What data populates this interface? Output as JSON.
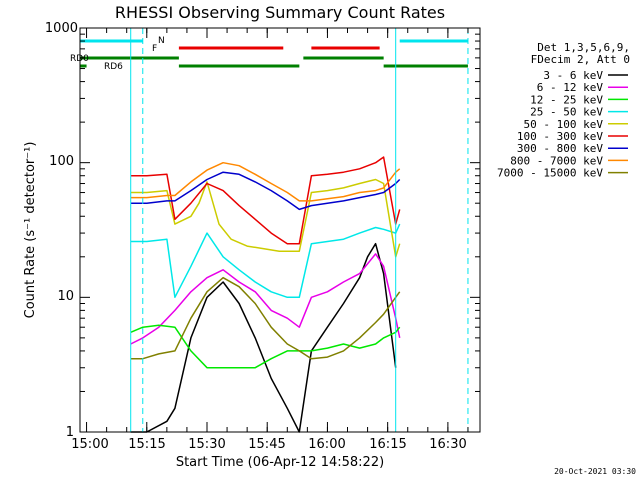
{
  "colors": {
    "background": "#ffffff",
    "axes": "#000000",
    "cyan": "#00e5ee",
    "red": "#e80000",
    "green": "#008000"
  },
  "chart_data": {
    "type": "line",
    "title": "RHESSI Observing Summary Count Rates",
    "xlabel": "Start Time (06-Apr-12 14:58:22)",
    "ylabel": "Count Rate (s⁻¹ detector⁻¹)",
    "y_scale": "log",
    "ylim": [
      1,
      1000
    ],
    "xlim": [
      "14:58:22",
      "16:38:00"
    ],
    "x_ticks": [
      "15:00",
      "15:15",
      "15:30",
      "15:45",
      "16:00",
      "16:15",
      "16:30"
    ],
    "y_ticks": [
      "1",
      "10",
      "100",
      "1000"
    ],
    "legend_header": [
      "Det 1,3,5,6,9,",
      "FDecim 2, Att 0"
    ],
    "footer_stamp": "20-Oct-2021 03:30",
    "flag_labels": {
      "N": "N",
      "F": "F",
      "RD0": "RD0",
      "RD6": "RD6"
    },
    "flags": {
      "N_cyan": [
        [
          "14:58:22",
          "15:14:00"
        ],
        [
          "16:18:00",
          "16:35:00"
        ]
      ],
      "F_red": [
        [
          "15:23:00",
          "15:49:00"
        ],
        [
          "15:56:00",
          "16:13:00"
        ]
      ],
      "RD0_green": [
        [
          "14:58:22",
          "15:23:00"
        ],
        [
          "15:54:00",
          "16:14:00"
        ]
      ],
      "RD6_green": [
        [
          "14:58:22",
          "15:00:00"
        ],
        [
          "15:23:00",
          "15:53:00"
        ],
        [
          "16:14:00",
          "16:35:00"
        ]
      ]
    },
    "vlines_solid": [
      "15:11:00",
      "16:17:00"
    ],
    "vlines_dashed": [
      "15:14:00",
      "16:35:00"
    ],
    "series": [
      {
        "name": "3 - 6 keV",
        "color": "#000000",
        "x": [
          "15:11:00",
          "15:15:00",
          "15:20:00",
          "15:22:00",
          "15:26:00",
          "15:30:00",
          "15:34:00",
          "15:38:00",
          "15:42:00",
          "15:46:00",
          "15:50:00",
          "15:53:00",
          "15:56:00",
          "16:00:00",
          "16:04:00",
          "16:08:00",
          "16:10:00",
          "16:12:00",
          "16:14:00",
          "16:17:00"
        ],
        "y": [
          1,
          1,
          1.2,
          1.5,
          5,
          10,
          13,
          9,
          5,
          2.5,
          1.5,
          1,
          4,
          6,
          9,
          14,
          20,
          25,
          15,
          3
        ]
      },
      {
        "name": "6 - 12 keV",
        "color": "#e800e8",
        "x": [
          "15:11:00",
          "15:14:00",
          "15:18:00",
          "15:22:00",
          "15:26:00",
          "15:30:00",
          "15:34:00",
          "15:38:00",
          "15:42:00",
          "15:46:00",
          "15:50:00",
          "15:53:00",
          "15:56:00",
          "16:00:00",
          "16:04:00",
          "16:08:00",
          "16:12:00",
          "16:14:00",
          "16:17:00",
          "16:18:00"
        ],
        "y": [
          4.5,
          5,
          6,
          8,
          11,
          14,
          16,
          13,
          11,
          8,
          7,
          6,
          10,
          11,
          13,
          15,
          21,
          17,
          7,
          5
        ]
      },
      {
        "name": "12 - 25 keV",
        "color": "#00e800",
        "x": [
          "15:11:00",
          "15:14:00",
          "15:18:00",
          "15:22:00",
          "15:26:00",
          "15:30:00",
          "15:34:00",
          "15:38:00",
          "15:42:00",
          "15:46:00",
          "15:50:00",
          "15:53:00",
          "15:56:00",
          "16:00:00",
          "16:04:00",
          "16:08:00",
          "16:12:00",
          "16:14:00",
          "16:17:00",
          "16:18:00"
        ],
        "y": [
          5.5,
          6,
          6.2,
          6,
          4,
          3,
          3,
          3,
          3,
          3.5,
          4,
          4,
          4,
          4.2,
          4.5,
          4.2,
          4.5,
          5,
          5.5,
          6
        ]
      },
      {
        "name": "25 - 50 keV",
        "color": "#00e8e8",
        "x": [
          "15:11:00",
          "15:15:00",
          "15:20:00",
          "15:22:00",
          "15:26:00",
          "15:30:00",
          "15:34:00",
          "15:38:00",
          "15:42:00",
          "15:46:00",
          "15:50:00",
          "15:53:00",
          "15:56:00",
          "16:00:00",
          "16:04:00",
          "16:08:00",
          "16:12:00",
          "16:14:00",
          "16:17:00",
          "16:18:00"
        ],
        "y": [
          26,
          26,
          27,
          10,
          17,
          30,
          20,
          16,
          13,
          11,
          10,
          10,
          25,
          26,
          27,
          30,
          33,
          32,
          30,
          35
        ]
      },
      {
        "name": "50 - 100 keV",
        "color": "#cccc00",
        "x": [
          "15:11:00",
          "15:15:00",
          "15:20:00",
          "15:22:00",
          "15:26:00",
          "15:28:00",
          "15:30:00",
          "15:33:00",
          "15:36:00",
          "15:40:00",
          "15:44:00",
          "15:48:00",
          "15:53:00",
          "15:56:00",
          "16:00:00",
          "16:04:00",
          "16:08:00",
          "16:12:00",
          "16:14:00",
          "16:17:00",
          "16:18:00"
        ],
        "y": [
          60,
          60,
          62,
          35,
          40,
          50,
          72,
          35,
          27,
          24,
          23,
          22,
          22,
          60,
          62,
          65,
          70,
          75,
          70,
          20,
          25
        ]
      },
      {
        "name": "100 - 300 keV",
        "color": "#e80000",
        "x": [
          "15:11:00",
          "15:15:00",
          "15:20:00",
          "15:22:00",
          "15:26:00",
          "15:30:00",
          "15:34:00",
          "15:38:00",
          "15:42:00",
          "15:46:00",
          "15:50:00",
          "15:53:00",
          "15:56:00",
          "16:00:00",
          "16:04:00",
          "16:08:00",
          "16:12:00",
          "16:14:00",
          "16:17:00",
          "16:18:00"
        ],
        "y": [
          80,
          80,
          82,
          38,
          50,
          70,
          62,
          48,
          38,
          30,
          25,
          25,
          80,
          82,
          85,
          90,
          100,
          110,
          35,
          45
        ]
      },
      {
        "name": "300 - 800 keV",
        "color": "#0000cc",
        "x": [
          "15:11:00",
          "15:15:00",
          "15:20:00",
          "15:22:00",
          "15:26:00",
          "15:30:00",
          "15:34:00",
          "15:38:00",
          "15:42:00",
          "15:46:00",
          "15:50:00",
          "15:53:00",
          "15:56:00",
          "16:00:00",
          "16:04:00",
          "16:08:00",
          "16:12:00",
          "16:14:00",
          "16:17:00",
          "16:18:00"
        ],
        "y": [
          50,
          50,
          52,
          52,
          62,
          75,
          85,
          82,
          72,
          62,
          52,
          45,
          48,
          50,
          52,
          55,
          58,
          60,
          70,
          75
        ]
      },
      {
        "name": "800 - 7000 keV",
        "color": "#ff8800",
        "x": [
          "15:11:00",
          "15:15:00",
          "15:20:00",
          "15:22:00",
          "15:26:00",
          "15:30:00",
          "15:34:00",
          "15:38:00",
          "15:42:00",
          "15:46:00",
          "15:50:00",
          "15:53:00",
          "15:56:00",
          "16:00:00",
          "16:04:00",
          "16:08:00",
          "16:12:00",
          "16:14:00",
          "16:17:00",
          "16:18:00"
        ],
        "y": [
          55,
          55,
          57,
          57,
          72,
          88,
          100,
          95,
          82,
          70,
          60,
          52,
          52,
          54,
          56,
          60,
          62,
          65,
          85,
          90
        ]
      },
      {
        "name": "7000 - 15000 keV",
        "color": "#808000",
        "x": [
          "15:11:00",
          "15:14:00",
          "15:18:00",
          "15:22:00",
          "15:26:00",
          "15:30:00",
          "15:34:00",
          "15:38:00",
          "15:42:00",
          "15:46:00",
          "15:50:00",
          "15:53:00",
          "15:56:00",
          "16:00:00",
          "16:04:00",
          "16:08:00",
          "16:12:00",
          "16:14:00",
          "16:17:00",
          "16:18:00"
        ],
        "y": [
          3.5,
          3.5,
          3.8,
          4,
          7,
          11,
          14,
          12,
          9,
          6,
          4.5,
          4,
          3.5,
          3.6,
          4,
          5,
          6.5,
          7.5,
          10,
          11
        ]
      }
    ]
  }
}
